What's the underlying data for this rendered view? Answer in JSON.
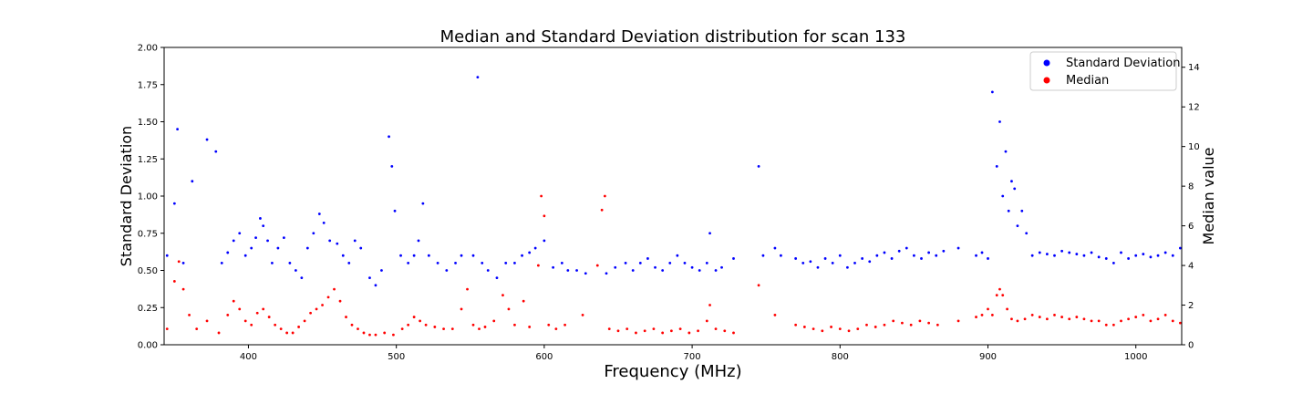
{
  "chart_data": {
    "type": "scatter",
    "title": "Median and Standard Deviation distribution for scan 133",
    "xlabel": "Frequency (MHz)",
    "ylabel_left": "Standard Deviation",
    "ylabel_right": "Median value",
    "xlim": [
      343,
      1031
    ],
    "ylim_left": [
      0,
      2.0
    ],
    "ylim_right": [
      0,
      15
    ],
    "x_ticks": [
      400,
      500,
      600,
      700,
      800,
      900,
      1000
    ],
    "y_ticks_left": [
      "0.00",
      "0.25",
      "0.50",
      "0.75",
      "1.00",
      "1.25",
      "1.50",
      "1.75",
      "2.00"
    ],
    "y_ticks_right": [
      0,
      2,
      4,
      6,
      8,
      10,
      12,
      14
    ],
    "grid": false,
    "legend_position": "top-right",
    "series": [
      {
        "name": "Standard Deviation",
        "axis": "left",
        "color": "#0000ff",
        "points": [
          [
            345,
            0.6
          ],
          [
            350,
            0.95
          ],
          [
            352,
            1.45
          ],
          [
            356,
            0.55
          ],
          [
            362,
            1.1
          ],
          [
            372,
            1.38
          ],
          [
            378,
            1.3
          ],
          [
            382,
            0.55
          ],
          [
            386,
            0.62
          ],
          [
            390,
            0.7
          ],
          [
            394,
            0.75
          ],
          [
            398,
            0.6
          ],
          [
            402,
            0.65
          ],
          [
            405,
            0.72
          ],
          [
            408,
            0.85
          ],
          [
            410,
            0.8
          ],
          [
            413,
            0.7
          ],
          [
            416,
            0.55
          ],
          [
            420,
            0.65
          ],
          [
            424,
            0.72
          ],
          [
            428,
            0.55
          ],
          [
            432,
            0.5
          ],
          [
            436,
            0.45
          ],
          [
            440,
            0.65
          ],
          [
            444,
            0.75
          ],
          [
            448,
            0.88
          ],
          [
            451,
            0.82
          ],
          [
            455,
            0.7
          ],
          [
            460,
            0.68
          ],
          [
            464,
            0.6
          ],
          [
            468,
            0.55
          ],
          [
            472,
            0.7
          ],
          [
            476,
            0.65
          ],
          [
            482,
            0.45
          ],
          [
            486,
            0.4
          ],
          [
            490,
            0.5
          ],
          [
            495,
            1.4
          ],
          [
            497,
            1.2
          ],
          [
            499,
            0.9
          ],
          [
            503,
            0.6
          ],
          [
            508,
            0.55
          ],
          [
            512,
            0.6
          ],
          [
            515,
            0.7
          ],
          [
            518,
            0.95
          ],
          [
            522,
            0.6
          ],
          [
            528,
            0.55
          ],
          [
            534,
            0.5
          ],
          [
            540,
            0.55
          ],
          [
            544,
            0.6
          ],
          [
            552,
            0.6
          ],
          [
            555,
            1.8
          ],
          [
            558,
            0.55
          ],
          [
            562,
            0.5
          ],
          [
            568,
            0.45
          ],
          [
            574,
            0.55
          ],
          [
            580,
            0.55
          ],
          [
            585,
            0.6
          ],
          [
            590,
            0.62
          ],
          [
            594,
            0.65
          ],
          [
            600,
            0.7
          ],
          [
            606,
            0.52
          ],
          [
            612,
            0.55
          ],
          [
            616,
            0.5
          ],
          [
            622,
            0.5
          ],
          [
            628,
            0.48
          ],
          [
            642,
            0.48
          ],
          [
            648,
            0.52
          ],
          [
            655,
            0.55
          ],
          [
            660,
            0.5
          ],
          [
            665,
            0.55
          ],
          [
            670,
            0.58
          ],
          [
            675,
            0.52
          ],
          [
            680,
            0.5
          ],
          [
            685,
            0.55
          ],
          [
            690,
            0.6
          ],
          [
            695,
            0.55
          ],
          [
            700,
            0.52
          ],
          [
            705,
            0.5
          ],
          [
            710,
            0.55
          ],
          [
            712,
            0.75
          ],
          [
            716,
            0.5
          ],
          [
            720,
            0.52
          ],
          [
            728,
            0.58
          ],
          [
            745,
            1.2
          ],
          [
            748,
            0.6
          ],
          [
            756,
            0.65
          ],
          [
            760,
            0.6
          ],
          [
            770,
            0.58
          ],
          [
            775,
            0.55
          ],
          [
            780,
            0.56
          ],
          [
            785,
            0.52
          ],
          [
            790,
            0.58
          ],
          [
            795,
            0.55
          ],
          [
            800,
            0.6
          ],
          [
            805,
            0.52
          ],
          [
            810,
            0.55
          ],
          [
            815,
            0.58
          ],
          [
            820,
            0.56
          ],
          [
            825,
            0.6
          ],
          [
            830,
            0.62
          ],
          [
            835,
            0.58
          ],
          [
            840,
            0.63
          ],
          [
            845,
            0.65
          ],
          [
            850,
            0.6
          ],
          [
            855,
            0.58
          ],
          [
            860,
            0.62
          ],
          [
            865,
            0.6
          ],
          [
            870,
            0.63
          ],
          [
            880,
            0.65
          ],
          [
            892,
            0.6
          ],
          [
            896,
            0.62
          ],
          [
            900,
            0.58
          ],
          [
            903,
            1.7
          ],
          [
            906,
            1.2
          ],
          [
            908,
            1.5
          ],
          [
            910,
            1.0
          ],
          [
            912,
            1.3
          ],
          [
            914,
            0.9
          ],
          [
            916,
            1.1
          ],
          [
            918,
            1.05
          ],
          [
            920,
            0.8
          ],
          [
            923,
            0.9
          ],
          [
            926,
            0.75
          ],
          [
            930,
            0.6
          ],
          [
            935,
            0.62
          ],
          [
            940,
            0.61
          ],
          [
            945,
            0.6
          ],
          [
            950,
            0.63
          ],
          [
            955,
            0.62
          ],
          [
            960,
            0.61
          ],
          [
            965,
            0.6
          ],
          [
            970,
            0.62
          ],
          [
            975,
            0.59
          ],
          [
            980,
            0.58
          ],
          [
            985,
            0.55
          ],
          [
            990,
            0.62
          ],
          [
            995,
            0.58
          ],
          [
            1000,
            0.6
          ],
          [
            1005,
            0.61
          ],
          [
            1010,
            0.59
          ],
          [
            1015,
            0.6
          ],
          [
            1020,
            0.62
          ],
          [
            1025,
            0.6
          ],
          [
            1030,
            0.65
          ]
        ]
      },
      {
        "name": "Median",
        "axis": "right",
        "color": "#ff0000",
        "points": [
          [
            345,
            0.8
          ],
          [
            350,
            3.2
          ],
          [
            353,
            4.2
          ],
          [
            356,
            2.8
          ],
          [
            360,
            1.5
          ],
          [
            365,
            0.8
          ],
          [
            372,
            1.2
          ],
          [
            380,
            0.6
          ],
          [
            386,
            1.5
          ],
          [
            390,
            2.2
          ],
          [
            394,
            1.8
          ],
          [
            398,
            1.2
          ],
          [
            402,
            1.0
          ],
          [
            406,
            1.6
          ],
          [
            410,
            1.8
          ],
          [
            414,
            1.4
          ],
          [
            418,
            1.0
          ],
          [
            422,
            0.8
          ],
          [
            426,
            0.6
          ],
          [
            430,
            0.6
          ],
          [
            434,
            0.9
          ],
          [
            438,
            1.2
          ],
          [
            442,
            1.6
          ],
          [
            446,
            1.8
          ],
          [
            450,
            2.0
          ],
          [
            454,
            2.4
          ],
          [
            458,
            2.8
          ],
          [
            462,
            2.2
          ],
          [
            466,
            1.4
          ],
          [
            470,
            1.0
          ],
          [
            474,
            0.8
          ],
          [
            478,
            0.6
          ],
          [
            482,
            0.5
          ],
          [
            486,
            0.5
          ],
          [
            492,
            0.6
          ],
          [
            498,
            0.5
          ],
          [
            504,
            0.8
          ],
          [
            508,
            1.0
          ],
          [
            512,
            1.4
          ],
          [
            516,
            1.2
          ],
          [
            520,
            1.0
          ],
          [
            526,
            0.9
          ],
          [
            532,
            0.8
          ],
          [
            538,
            0.8
          ],
          [
            544,
            1.8
          ],
          [
            548,
            2.8
          ],
          [
            552,
            1.0
          ],
          [
            556,
            0.8
          ],
          [
            560,
            0.9
          ],
          [
            566,
            1.2
          ],
          [
            572,
            2.5
          ],
          [
            576,
            1.8
          ],
          [
            580,
            1.0
          ],
          [
            586,
            2.2
          ],
          [
            590,
            0.9
          ],
          [
            596,
            4.0
          ],
          [
            598,
            7.5
          ],
          [
            600,
            6.5
          ],
          [
            603,
            1.0
          ],
          [
            608,
            0.8
          ],
          [
            614,
            1.0
          ],
          [
            626,
            1.5
          ],
          [
            636,
            4.0
          ],
          [
            639,
            6.8
          ],
          [
            641,
            7.5
          ],
          [
            644,
            0.8
          ],
          [
            650,
            0.7
          ],
          [
            656,
            0.8
          ],
          [
            662,
            0.6
          ],
          [
            668,
            0.7
          ],
          [
            674,
            0.8
          ],
          [
            680,
            0.6
          ],
          [
            686,
            0.7
          ],
          [
            692,
            0.8
          ],
          [
            698,
            0.6
          ],
          [
            704,
            0.7
          ],
          [
            710,
            1.2
          ],
          [
            712,
            2.0
          ],
          [
            716,
            0.8
          ],
          [
            722,
            0.7
          ],
          [
            728,
            0.6
          ],
          [
            745,
            3.0
          ],
          [
            756,
            1.5
          ],
          [
            770,
            1.0
          ],
          [
            776,
            0.9
          ],
          [
            782,
            0.8
          ],
          [
            788,
            0.7
          ],
          [
            794,
            0.9
          ],
          [
            800,
            0.8
          ],
          [
            806,
            0.7
          ],
          [
            812,
            0.8
          ],
          [
            818,
            1.0
          ],
          [
            824,
            0.9
          ],
          [
            830,
            1.0
          ],
          [
            836,
            1.2
          ],
          [
            842,
            1.1
          ],
          [
            848,
            1.0
          ],
          [
            854,
            1.2
          ],
          [
            860,
            1.1
          ],
          [
            866,
            1.0
          ],
          [
            880,
            1.2
          ],
          [
            892,
            1.4
          ],
          [
            896,
            1.5
          ],
          [
            900,
            1.8
          ],
          [
            903,
            1.5
          ],
          [
            906,
            2.5
          ],
          [
            908,
            2.8
          ],
          [
            910,
            2.5
          ],
          [
            913,
            1.8
          ],
          [
            916,
            1.3
          ],
          [
            920,
            1.2
          ],
          [
            925,
            1.3
          ],
          [
            930,
            1.5
          ],
          [
            935,
            1.4
          ],
          [
            940,
            1.3
          ],
          [
            945,
            1.5
          ],
          [
            950,
            1.4
          ],
          [
            955,
            1.3
          ],
          [
            960,
            1.4
          ],
          [
            965,
            1.3
          ],
          [
            970,
            1.2
          ],
          [
            975,
            1.2
          ],
          [
            980,
            1.0
          ],
          [
            985,
            1.0
          ],
          [
            990,
            1.2
          ],
          [
            995,
            1.3
          ],
          [
            1000,
            1.4
          ],
          [
            1005,
            1.5
          ],
          [
            1010,
            1.2
          ],
          [
            1015,
            1.3
          ],
          [
            1020,
            1.5
          ],
          [
            1025,
            1.2
          ],
          [
            1030,
            1.1
          ]
        ]
      }
    ]
  }
}
